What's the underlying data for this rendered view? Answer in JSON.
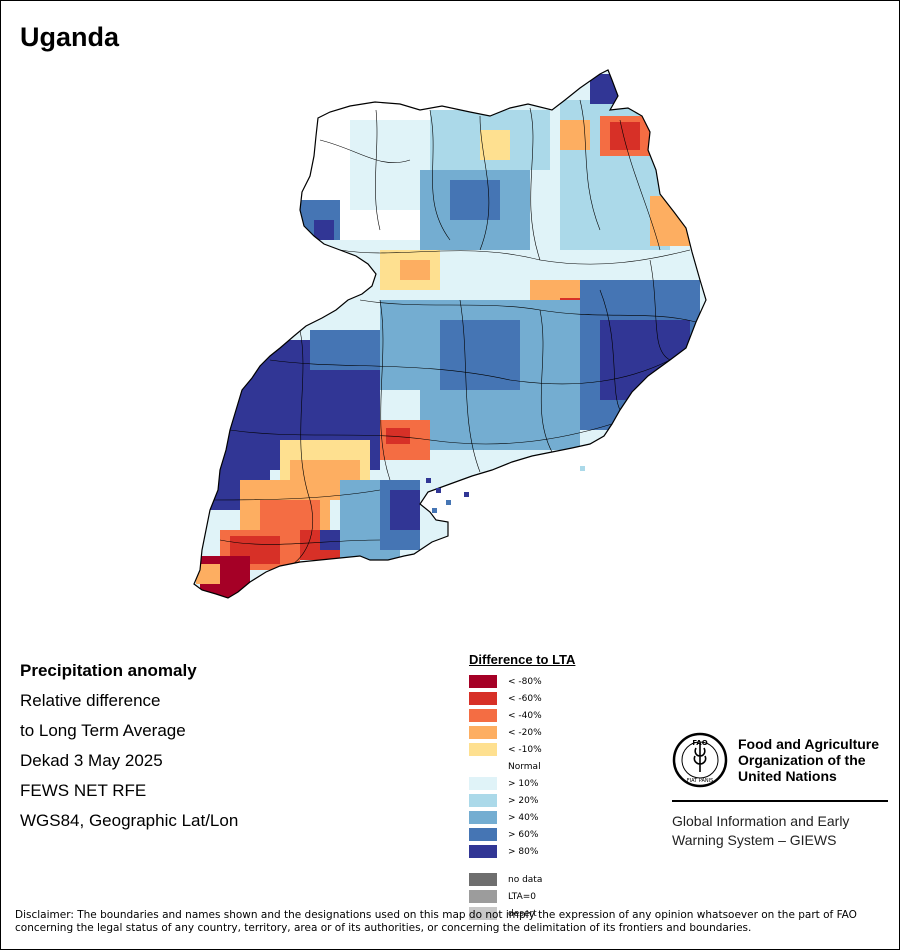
{
  "title": "Uganda",
  "info": {
    "heading": "Precipitation anomaly",
    "line1": "Relative difference",
    "line2": "to Long Term Average",
    "line3": "Dekad 3 May 2025",
    "line4": "FEWS NET RFE",
    "line5": "WGS84, Geographic Lat/Lon"
  },
  "legend": {
    "title": "Difference to LTA",
    "classes": [
      {
        "label": "< -80%",
        "color": "#a50026"
      },
      {
        "label": "< -60%",
        "color": "#d73027"
      },
      {
        "label": "< -40%",
        "color": "#f46d43"
      },
      {
        "label": "< -20%",
        "color": "#fdae61"
      },
      {
        "label": "< -10%",
        "color": "#fee090"
      },
      {
        "label": "Normal",
        "color": "#ffffff"
      },
      {
        "label": "> 10%",
        "color": "#e0f3f8"
      },
      {
        "label": "> 20%",
        "color": "#abd9e9"
      },
      {
        "label": "> 40%",
        "color": "#74add1"
      },
      {
        "label": "> 60%",
        "color": "#4575b4"
      },
      {
        "label": "> 80%",
        "color": "#313695"
      }
    ],
    "extra": [
      {
        "label": "no data",
        "color": "#6e6e6e"
      },
      {
        "label": "LTA=0",
        "color": "#9c9c9c"
      },
      {
        "label": "desert",
        "color": "#c8c8c8"
      }
    ]
  },
  "logo": {
    "org_name": "Food and Agriculture\nOrganization of the\nUnited Nations",
    "emblem_text": "FAO",
    "emblem_motto": "FIAT PANIS",
    "system_name": "Global Information and Early\nWarning System – GIEWS"
  },
  "disclaimer": "Disclaimer: The boundaries and names shown and the designations used on this map do not imply the expression of any opinion whatsoever on the part of FAO concerning the legal status of any country, territory, area or of its authorities, or concerning the delimitation of its frontiers and boundaries."
}
